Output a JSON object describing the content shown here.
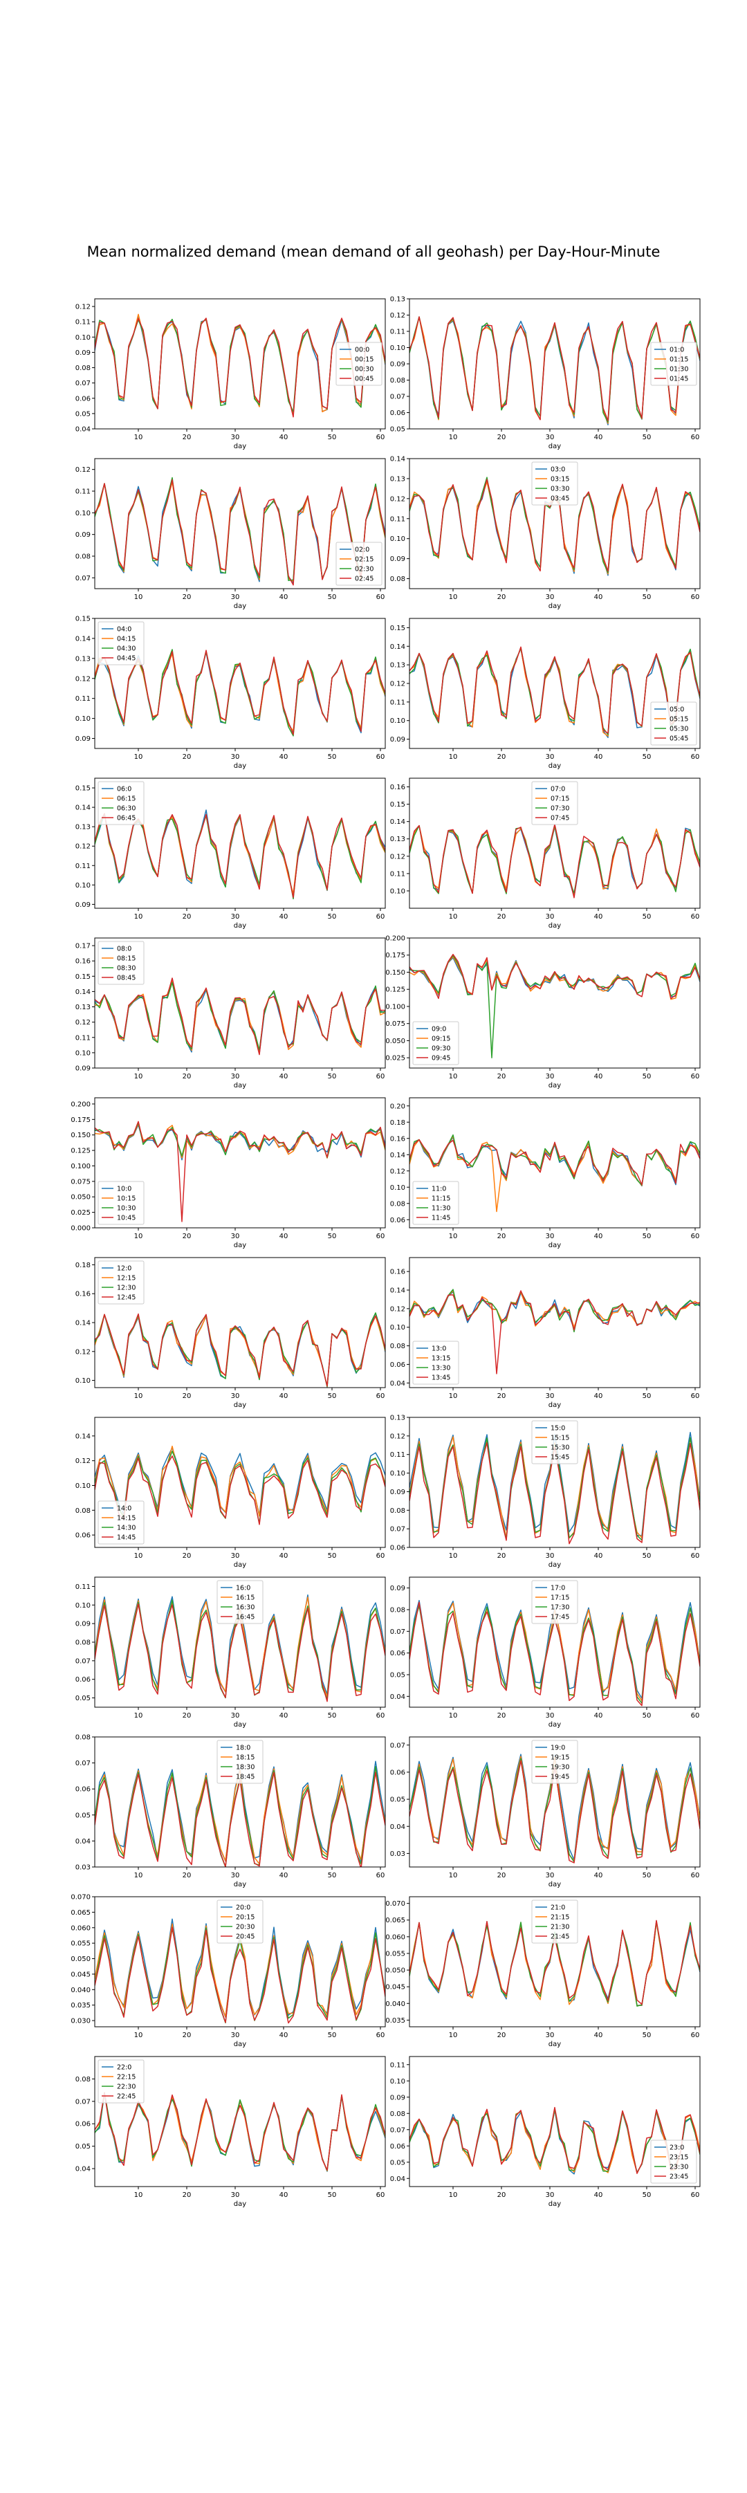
{
  "figure": {
    "suptitle": "Mean normalized demand (mean demand of all geohash) per Day-Hour-Minute",
    "colors": [
      "#1f77b4",
      "#ff7f0e",
      "#2ca02c",
      "#d62728"
    ]
  },
  "chart_data": [
    {
      "type": "line",
      "xlabel": "day",
      "legend": [
        "00:0",
        "00:15",
        "00:30",
        "00:45"
      ],
      "legend_loc": "center-right",
      "ylim": [
        0.04,
        0.125
      ],
      "yticks": [
        "0.04",
        "0.05",
        "0.06",
        "0.07",
        "0.08",
        "0.09",
        "0.10",
        "0.11",
        "0.12"
      ],
      "xticks": [
        "10",
        "20",
        "30",
        "40",
        "50",
        "60"
      ],
      "x_range": [
        1,
        61
      ],
      "weekly": [
        0.095,
        0.105,
        0.11,
        0.1,
        0.085,
        0.06,
        0.055
      ],
      "peaks": []
    },
    {
      "type": "line",
      "xlabel": "day",
      "legend": [
        "01:0",
        "01:15",
        "01:30",
        "01:45"
      ],
      "legend_loc": "center-right",
      "ylim": [
        0.05,
        0.13
      ],
      "yticks": [
        "0.05",
        "0.06",
        "0.07",
        "0.08",
        "0.09",
        "0.10",
        "0.11",
        "0.12",
        "0.13"
      ],
      "xticks": [
        "10",
        "20",
        "30",
        "40",
        "50",
        "60"
      ],
      "x_range": [
        1,
        61
      ],
      "weekly": [
        0.1,
        0.11,
        0.115,
        0.105,
        0.09,
        0.065,
        0.06
      ],
      "peaks": []
    },
    {
      "type": "line",
      "xlabel": "day",
      "legend": [
        "02:0",
        "02:15",
        "02:30",
        "02:45"
      ],
      "legend_loc": "lower-right",
      "ylim": [
        0.065,
        0.125
      ],
      "yticks": [
        "0.07",
        "0.08",
        "0.09",
        "0.10",
        "0.11",
        "0.12"
      ],
      "xticks": [
        "10",
        "20",
        "30",
        "40",
        "50",
        "60"
      ],
      "x_range": [
        1,
        61
      ],
      "weekly": [
        0.1,
        0.105,
        0.11,
        0.1,
        0.09,
        0.075,
        0.072
      ],
      "peaks": []
    },
    {
      "type": "line",
      "xlabel": "day",
      "legend": [
        "03:0",
        "03:15",
        "03:30",
        "03:45"
      ],
      "legend_loc": "upper-center",
      "ylim": [
        0.075,
        0.14
      ],
      "yticks": [
        "0.08",
        "0.09",
        "0.10",
        "0.11",
        "0.12",
        "0.13",
        "0.14"
      ],
      "xticks": [
        "10",
        "20",
        "30",
        "40",
        "50",
        "60"
      ],
      "x_range": [
        1,
        61
      ],
      "weekly": [
        0.115,
        0.12,
        0.125,
        0.115,
        0.1,
        0.09,
        0.088
      ],
      "peaks": []
    },
    {
      "type": "line",
      "xlabel": "day",
      "legend": [
        "04:0",
        "04:15",
        "04:30",
        "04:45"
      ],
      "legend_loc": "upper-left",
      "ylim": [
        0.085,
        0.15
      ],
      "yticks": [
        "0.09",
        "0.10",
        "0.11",
        "0.12",
        "0.13",
        "0.14",
        "0.15"
      ],
      "xticks": [
        "10",
        "20",
        "30",
        "40",
        "50",
        "60"
      ],
      "x_range": [
        1,
        61
      ],
      "weekly": [
        0.12,
        0.125,
        0.13,
        0.12,
        0.11,
        0.1,
        0.098
      ],
      "peaks": []
    },
    {
      "type": "line",
      "xlabel": "day",
      "legend": [
        "05:0",
        "05:15",
        "05:30",
        "05:45"
      ],
      "legend_loc": "lower-right",
      "ylim": [
        0.085,
        0.155
      ],
      "yticks": [
        "0.09",
        "0.10",
        "0.11",
        "0.12",
        "0.13",
        "0.14",
        "0.15"
      ],
      "xticks": [
        "10",
        "20",
        "30",
        "40",
        "50",
        "60"
      ],
      "x_range": [
        1,
        61
      ],
      "weekly": [
        0.125,
        0.13,
        0.135,
        0.125,
        0.115,
        0.1,
        0.098
      ],
      "peaks": []
    },
    {
      "type": "line",
      "xlabel": "day",
      "legend": [
        "06:0",
        "06:15",
        "06:30",
        "06:45"
      ],
      "legend_loc": "upper-left",
      "ylim": [
        0.088,
        0.155
      ],
      "yticks": [
        "0.09",
        "0.10",
        "0.11",
        "0.12",
        "0.13",
        "0.14",
        "0.15"
      ],
      "xticks": [
        "10",
        "20",
        "30",
        "40",
        "50",
        "60"
      ],
      "x_range": [
        1,
        61
      ],
      "weekly": [
        0.12,
        0.13,
        0.135,
        0.125,
        0.115,
        0.105,
        0.1
      ],
      "peaks": []
    },
    {
      "type": "line",
      "xlabel": "day",
      "legend": [
        "07:0",
        "07:15",
        "07:30",
        "07:45"
      ],
      "legend_loc": "upper-center",
      "ylim": [
        0.09,
        0.165
      ],
      "yticks": [
        "0.10",
        "0.11",
        "0.12",
        "0.13",
        "0.14",
        "0.15",
        "0.16"
      ],
      "xticks": [
        "10",
        "20",
        "30",
        "40",
        "50",
        "60"
      ],
      "x_range": [
        1,
        61
      ],
      "weekly": [
        0.12,
        0.13,
        0.135,
        0.125,
        0.115,
        0.105,
        0.1
      ],
      "peaks": []
    },
    {
      "type": "line",
      "xlabel": "day",
      "legend": [
        "08:0",
        "08:15",
        "08:30",
        "08:45"
      ],
      "legend_loc": "upper-left",
      "ylim": [
        0.09,
        0.175
      ],
      "yticks": [
        "0.09",
        "0.10",
        "0.11",
        "0.12",
        "0.13",
        "0.14",
        "0.15",
        "0.16",
        "0.17"
      ],
      "xticks": [
        "10",
        "20",
        "30",
        "40",
        "50",
        "60"
      ],
      "x_range": [
        1,
        61
      ],
      "weekly": [
        0.13,
        0.135,
        0.14,
        0.13,
        0.12,
        0.11,
        0.105
      ],
      "peaks": []
    },
    {
      "type": "line",
      "xlabel": "day",
      "legend": [
        "09:0",
        "09:15",
        "09:30",
        "09:45"
      ],
      "legend_loc": "lower-left",
      "ylim": [
        0.01,
        0.2
      ],
      "yticks": [
        "0.025",
        "0.050",
        "0.075",
        "0.100",
        "0.125",
        "0.150",
        "0.175",
        "0.200"
      ],
      "xticks": [
        "10",
        "20",
        "30",
        "40",
        "50",
        "60"
      ],
      "x_range": [
        1,
        61
      ],
      "weekly": [
        0.145,
        0.15,
        0.155,
        0.145,
        0.135,
        0.125,
        0.12
      ],
      "peaks": [
        [
          18,
          0.025,
          2
        ]
      ]
    },
    {
      "type": "line",
      "xlabel": "day",
      "legend": [
        "10:0",
        "10:15",
        "10:30",
        "10:45"
      ],
      "legend_loc": "lower-left",
      "ylim": [
        0.0,
        0.21
      ],
      "yticks": [
        "0.000",
        "0.025",
        "0.050",
        "0.075",
        "0.100",
        "0.125",
        "0.150",
        "0.175",
        "0.200"
      ],
      "xticks": [
        "10",
        "20",
        "30",
        "40",
        "50",
        "60"
      ],
      "x_range": [
        1,
        61
      ],
      "weekly": [
        0.145,
        0.15,
        0.155,
        0.145,
        0.135,
        0.13,
        0.125
      ],
      "peaks": [
        [
          19,
          0.01,
          3
        ]
      ]
    },
    {
      "type": "line",
      "xlabel": "day",
      "legend": [
        "11:0",
        "11:15",
        "11:30",
        "11:45"
      ],
      "legend_loc": "lower-left",
      "ylim": [
        0.05,
        0.21
      ],
      "yticks": [
        "0.06",
        "0.08",
        "0.10",
        "0.12",
        "0.14",
        "0.16",
        "0.18",
        "0.20"
      ],
      "xticks": [
        "10",
        "20",
        "30",
        "40",
        "50",
        "60"
      ],
      "x_range": [
        1,
        61
      ],
      "weekly": [
        0.14,
        0.145,
        0.15,
        0.14,
        0.13,
        0.12,
        0.115
      ],
      "peaks": [
        [
          19,
          0.07,
          1
        ]
      ]
    },
    {
      "type": "line",
      "xlabel": "day",
      "legend": [
        "12:0",
        "12:15",
        "12:30",
        "12:45"
      ],
      "legend_loc": "upper-left",
      "ylim": [
        0.095,
        0.185
      ],
      "yticks": [
        "0.10",
        "0.12",
        "0.14",
        "0.16",
        "0.18"
      ],
      "xticks": [
        "10",
        "20",
        "30",
        "40",
        "50",
        "60"
      ],
      "x_range": [
        1,
        61
      ],
      "weekly": [
        0.13,
        0.135,
        0.14,
        0.13,
        0.12,
        0.11,
        0.105
      ],
      "peaks": []
    },
    {
      "type": "line",
      "xlabel": "day",
      "legend": [
        "13:0",
        "13:15",
        "13:30",
        "13:45"
      ],
      "legend_loc": "lower-left",
      "ylim": [
        0.035,
        0.175
      ],
      "yticks": [
        "0.04",
        "0.06",
        "0.08",
        "0.10",
        "0.12",
        "0.14",
        "0.16"
      ],
      "xticks": [
        "10",
        "20",
        "30",
        "40",
        "50",
        "60"
      ],
      "x_range": [
        1,
        61
      ],
      "weekly": [
        0.12,
        0.125,
        0.13,
        0.12,
        0.115,
        0.11,
        0.105
      ],
      "peaks": [
        [
          19,
          0.05,
          3
        ]
      ]
    },
    {
      "type": "line",
      "xlabel": "day",
      "legend": [
        "14:0",
        "14:15",
        "14:30",
        "14:45"
      ],
      "legend_loc": "lower-left",
      "ylim": [
        0.05,
        0.155
      ],
      "yticks": [
        "0.06",
        "0.08",
        "0.10",
        "0.12",
        "0.14"
      ],
      "xticks": [
        "10",
        "20",
        "30",
        "40",
        "50",
        "60"
      ],
      "x_range": [
        1,
        61
      ],
      "weekly": [
        0.105,
        0.115,
        0.12,
        0.11,
        0.1,
        0.085,
        0.08
      ],
      "peaks": []
    },
    {
      "type": "line",
      "xlabel": "day",
      "legend": [
        "15:0",
        "15:15",
        "15:30",
        "15:45"
      ],
      "legend_loc": "upper-center",
      "ylim": [
        0.06,
        0.13
      ],
      "yticks": [
        "0.06",
        "0.07",
        "0.08",
        "0.09",
        "0.10",
        "0.11",
        "0.12",
        "0.13"
      ],
      "xticks": [
        "10",
        "20",
        "30",
        "40",
        "50",
        "60"
      ],
      "x_range": [
        1,
        61
      ],
      "weekly": [
        0.09,
        0.105,
        0.115,
        0.1,
        0.085,
        0.07,
        0.068
      ],
      "peaks": []
    },
    {
      "type": "line",
      "xlabel": "day",
      "legend": [
        "16:0",
        "16:15",
        "16:30",
        "16:45"
      ],
      "legend_loc": "upper-center",
      "ylim": [
        0.045,
        0.115
      ],
      "yticks": [
        "0.05",
        "0.06",
        "0.07",
        "0.08",
        "0.09",
        "0.10",
        "0.11"
      ],
      "xticks": [
        "10",
        "20",
        "30",
        "40",
        "50",
        "60"
      ],
      "x_range": [
        1,
        61
      ],
      "weekly": [
        0.075,
        0.09,
        0.1,
        0.085,
        0.07,
        0.058,
        0.055
      ],
      "peaks": []
    },
    {
      "type": "line",
      "xlabel": "day",
      "legend": [
        "17:0",
        "17:15",
        "17:30",
        "17:45"
      ],
      "legend_loc": "upper-center",
      "ylim": [
        0.035,
        0.095
      ],
      "yticks": [
        "0.04",
        "0.05",
        "0.06",
        "0.07",
        "0.08",
        "0.09"
      ],
      "xticks": [
        "10",
        "20",
        "30",
        "40",
        "50",
        "60"
      ],
      "x_range": [
        1,
        61
      ],
      "weekly": [
        0.06,
        0.072,
        0.08,
        0.068,
        0.055,
        0.045,
        0.043
      ],
      "peaks": []
    },
    {
      "type": "line",
      "xlabel": "day",
      "legend": [
        "18:0",
        "18:15",
        "18:30",
        "18:45"
      ],
      "legend_loc": "upper-center",
      "ylim": [
        0.03,
        0.08
      ],
      "yticks": [
        "0.03",
        "0.04",
        "0.05",
        "0.06",
        "0.07",
        "0.08"
      ],
      "xticks": [
        "10",
        "20",
        "30",
        "40",
        "50",
        "60"
      ],
      "x_range": [
        1,
        61
      ],
      "weekly": [
        0.048,
        0.058,
        0.066,
        0.055,
        0.044,
        0.036,
        0.034
      ],
      "peaks": []
    },
    {
      "type": "line",
      "xlabel": "day",
      "legend": [
        "19:0",
        "19:15",
        "19:30",
        "19:45"
      ],
      "legend_loc": "upper-center",
      "ylim": [
        0.025,
        0.073
      ],
      "yticks": [
        "0.03",
        "0.04",
        "0.05",
        "0.06",
        "0.07"
      ],
      "xticks": [
        "10",
        "20",
        "30",
        "40",
        "50",
        "60"
      ],
      "x_range": [
        1,
        61
      ],
      "weekly": [
        0.045,
        0.055,
        0.063,
        0.052,
        0.04,
        0.033,
        0.031
      ],
      "peaks": []
    },
    {
      "type": "line",
      "xlabel": "day",
      "legend": [
        "20:0",
        "20:15",
        "20:30",
        "20:45"
      ],
      "legend_loc": "upper-center",
      "ylim": [
        0.028,
        0.07
      ],
      "yticks": [
        "0.030",
        "0.035",
        "0.040",
        "0.045",
        "0.050",
        "0.055",
        "0.060",
        "0.065",
        "0.070"
      ],
      "xticks": [
        "10",
        "20",
        "30",
        "40",
        "50",
        "60"
      ],
      "x_range": [
        1,
        61
      ],
      "weekly": [
        0.042,
        0.05,
        0.058,
        0.048,
        0.039,
        0.034,
        0.033
      ],
      "peaks": []
    },
    {
      "type": "line",
      "xlabel": "day",
      "legend": [
        "21:0",
        "21:15",
        "21:30",
        "21:45"
      ],
      "legend_loc": "upper-center",
      "ylim": [
        0.033,
        0.072
      ],
      "yticks": [
        "0.035",
        "0.040",
        "0.045",
        "0.050",
        "0.055",
        "0.060",
        "0.065",
        "0.070"
      ],
      "xticks": [
        "10",
        "20",
        "30",
        "40",
        "50",
        "60"
      ],
      "x_range": [
        1,
        61
      ],
      "weekly": [
        0.048,
        0.055,
        0.062,
        0.055,
        0.048,
        0.043,
        0.042
      ],
      "peaks": []
    },
    {
      "type": "line",
      "xlabel": "day",
      "legend": [
        "22:0",
        "22:15",
        "22:30",
        "22:45"
      ],
      "legend_loc": "upper-left",
      "ylim": [
        0.032,
        0.09
      ],
      "yticks": [
        "0.04",
        "0.05",
        "0.06",
        "0.07",
        "0.08"
      ],
      "xticks": [
        "10",
        "20",
        "30",
        "40",
        "50",
        "60"
      ],
      "x_range": [
        1,
        61
      ],
      "weekly": [
        0.055,
        0.062,
        0.07,
        0.062,
        0.055,
        0.046,
        0.044
      ],
      "peaks": []
    },
    {
      "type": "line",
      "xlabel": "day",
      "legend": [
        "23:0",
        "23:15",
        "23:30",
        "23:45"
      ],
      "legend_loc": "lower-right",
      "ylim": [
        0.035,
        0.115
      ],
      "yticks": [
        "0.04",
        "0.05",
        "0.06",
        "0.07",
        "0.08",
        "0.09",
        "0.10",
        "0.11"
      ],
      "xticks": [
        "10",
        "20",
        "30",
        "40",
        "50",
        "60"
      ],
      "x_range": [
        1,
        61
      ],
      "weekly": [
        0.06,
        0.072,
        0.08,
        0.07,
        0.06,
        0.05,
        0.048
      ],
      "peaks": []
    }
  ]
}
